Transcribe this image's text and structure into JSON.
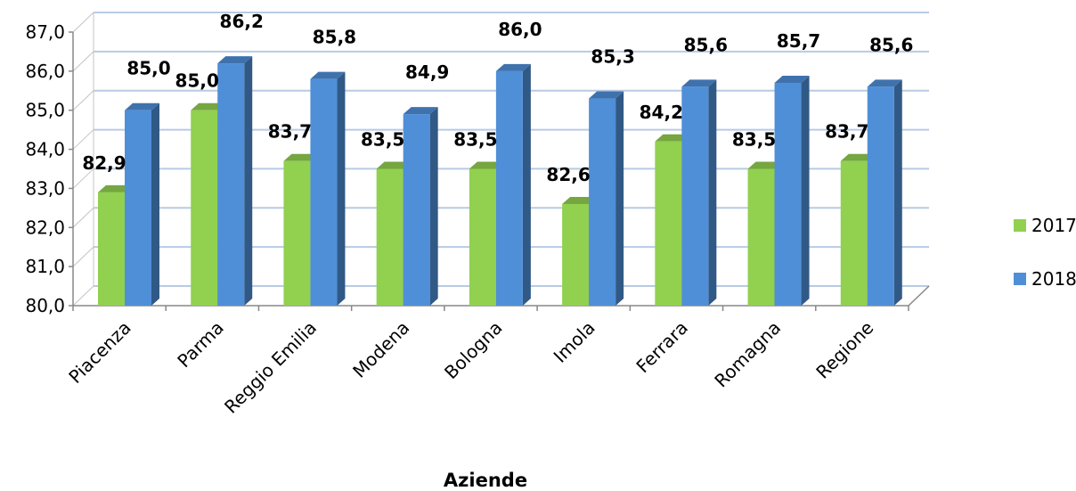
{
  "chart_data": {
    "type": "bar",
    "title": "",
    "xlabel": "Aziende",
    "ylabel": "",
    "ylim": [
      80,
      87
    ],
    "yticks": [
      "80,0",
      "81,0",
      "82,0",
      "83,0",
      "84,0",
      "85,0",
      "86,0",
      "87,0"
    ],
    "grid": true,
    "legend_position": "right",
    "style": "3d-clustered",
    "categories": [
      "Piacenza",
      "Parma",
      "Reggio Emilia",
      "Modena",
      "Bologna",
      "Imola",
      "Ferrara",
      "Romagna",
      "Regione"
    ],
    "series": [
      {
        "name": "2017",
        "color": "#92d050",
        "values": [
          82.9,
          85.0,
          83.7,
          83.5,
          83.5,
          82.6,
          84.2,
          83.5,
          83.7
        ],
        "labels": [
          "82,9",
          "85,0",
          "83,7",
          "83,5",
          "83,5",
          "82,6",
          "84,2",
          "83,5",
          "83,7"
        ]
      },
      {
        "name": "2018",
        "color": "#4f8fd8",
        "values": [
          85.0,
          86.2,
          85.8,
          84.9,
          86.0,
          85.3,
          85.6,
          85.7,
          85.6
        ],
        "labels": [
          "85,0",
          "86,2",
          "85,8",
          "84,9",
          "86,0",
          "85,3",
          "85,6",
          "85,7",
          "85,6"
        ]
      }
    ]
  }
}
